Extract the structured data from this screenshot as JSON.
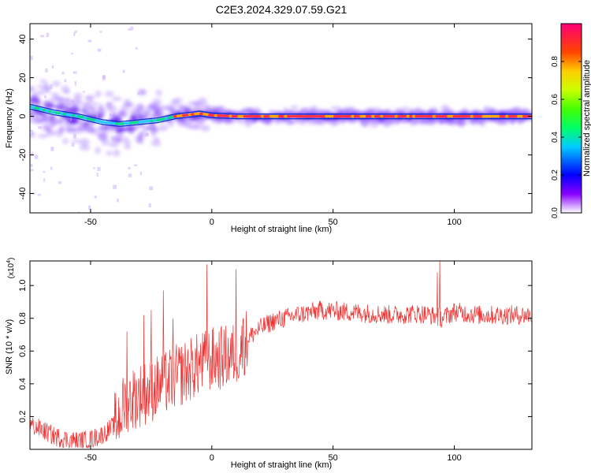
{
  "figure": {
    "title": "C2E3.2024.329.07.59.G21"
  },
  "chart_data": [
    {
      "type": "heatmap",
      "xlabel": "Height of straight line (km)",
      "ylabel": "Frequency (Hz)",
      "xlim": [
        -75,
        132
      ],
      "ylim": [
        -50,
        48
      ],
      "x_ticks": [
        -50,
        0,
        50,
        100
      ],
      "y_ticks": [
        -40,
        -20,
        0,
        20,
        40
      ],
      "grid": false,
      "colorbar": {
        "label": "Normalized spectral amplitude",
        "range": [
          0,
          1
        ],
        "ticks": [
          "0.0",
          "0.2",
          "0.4",
          "0.6",
          "0.8"
        ],
        "tick_values": [
          0,
          0.2,
          0.4,
          0.6,
          0.8
        ]
      },
      "ridge": [
        {
          "x": -75,
          "f": 5
        },
        {
          "x": -65,
          "f": 2
        },
        {
          "x": -55,
          "f": 0
        },
        {
          "x": -45,
          "f": -3
        },
        {
          "x": -38,
          "f": -4
        },
        {
          "x": -30,
          "f": -3
        },
        {
          "x": -22,
          "f": -2
        },
        {
          "x": -15,
          "f": 0
        },
        {
          "x": -8,
          "f": 1
        },
        {
          "x": -5,
          "f": 1.5
        },
        {
          "x": 0,
          "f": 0.5
        },
        {
          "x": 10,
          "f": 0
        },
        {
          "x": 132,
          "f": 0
        }
      ]
    },
    {
      "type": "line",
      "xlabel": "Height of straight line (km)",
      "ylabel": "SNR (10 * v/v)",
      "y_multiplier": "(x10",
      "y_multiplier_exp": "4",
      "y_multiplier_close": ")",
      "xlim": [
        -75,
        132
      ],
      "ylim": [
        0,
        1.15
      ],
      "x_ticks": [
        -50,
        0,
        50,
        100
      ],
      "y_ticks": [
        0.2,
        0.4,
        0.6,
        0.8,
        1.0
      ],
      "y_tick_labels": [
        "0.2",
        "0.4",
        "0.6",
        "0.8",
        "1.0"
      ],
      "color": "#ee3333",
      "trend": [
        {
          "x": -75,
          "y": 0.15
        },
        {
          "x": -70,
          "y": 0.12
        },
        {
          "x": -65,
          "y": 0.08
        },
        {
          "x": -60,
          "y": 0.06
        },
        {
          "x": -55,
          "y": 0.05
        },
        {
          "x": -50,
          "y": 0.06
        },
        {
          "x": -45,
          "y": 0.09
        },
        {
          "x": -40,
          "y": 0.15
        },
        {
          "x": -35,
          "y": 0.3
        },
        {
          "x": -30,
          "y": 0.33
        },
        {
          "x": -25,
          "y": 0.36
        },
        {
          "x": -20,
          "y": 0.4
        },
        {
          "x": -15,
          "y": 0.44
        },
        {
          "x": -10,
          "y": 0.48
        },
        {
          "x": -5,
          "y": 0.52
        },
        {
          "x": 0,
          "y": 0.55
        },
        {
          "x": 5,
          "y": 0.56
        },
        {
          "x": 10,
          "y": 0.58
        },
        {
          "x": 15,
          "y": 0.68
        },
        {
          "x": 20,
          "y": 0.74
        },
        {
          "x": 25,
          "y": 0.78
        },
        {
          "x": 30,
          "y": 0.8
        },
        {
          "x": 35,
          "y": 0.82
        },
        {
          "x": 45,
          "y": 0.85
        },
        {
          "x": 55,
          "y": 0.84
        },
        {
          "x": 65,
          "y": 0.83
        },
        {
          "x": 75,
          "y": 0.82
        },
        {
          "x": 85,
          "y": 0.83
        },
        {
          "x": 90,
          "y": 0.82
        },
        {
          "x": 95,
          "y": 0.8
        },
        {
          "x": 100,
          "y": 0.84
        },
        {
          "x": 110,
          "y": 0.82
        },
        {
          "x": 120,
          "y": 0.82
        },
        {
          "x": 132,
          "y": 0.82
        }
      ],
      "spikes": [
        {
          "x": -35,
          "y": 0.72
        },
        {
          "x": -28,
          "y": 0.82
        },
        {
          "x": -25,
          "y": 0.85
        },
        {
          "x": -20,
          "y": 0.97
        },
        {
          "x": -16,
          "y": 0.8
        },
        {
          "x": -2,
          "y": 1.13
        },
        {
          "x": 10,
          "y": 1.1
        },
        {
          "x": 13,
          "y": 0.8
        },
        {
          "x": 93,
          "y": 1.08
        },
        {
          "x": 94,
          "y": 1.15
        }
      ]
    }
  ]
}
